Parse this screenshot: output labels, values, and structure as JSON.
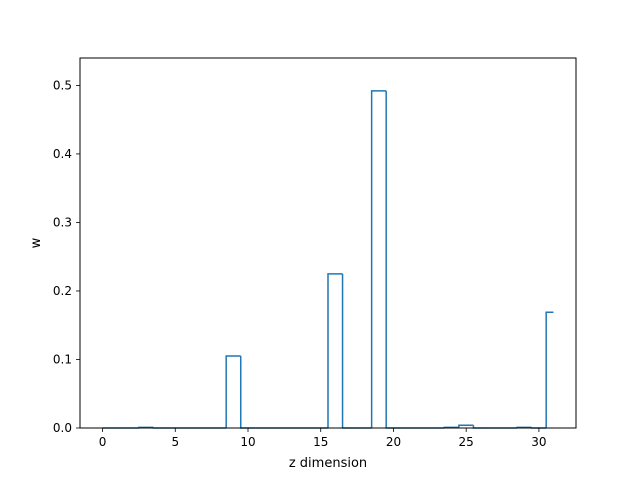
{
  "chart_data": {
    "type": "step",
    "title": "",
    "xlabel": "z dimension",
    "ylabel": "w",
    "xlim": [
      -1.55,
      32.55
    ],
    "ylim": [
      0,
      0.54
    ],
    "xticks": [
      0,
      5,
      10,
      15,
      20,
      25,
      30
    ],
    "yticks": [
      0.0,
      0.1,
      0.2,
      0.3,
      0.4,
      0.5
    ],
    "ytick_labels": [
      "0.0",
      "0.1",
      "0.2",
      "0.3",
      "0.4",
      "0.5"
    ],
    "grid": false,
    "color": "#1f77b4",
    "x": [
      0,
      1,
      2,
      3,
      4,
      5,
      6,
      7,
      8,
      9,
      10,
      11,
      12,
      13,
      14,
      15,
      16,
      17,
      18,
      19,
      20,
      21,
      22,
      23,
      24,
      25,
      26,
      27,
      28,
      29,
      30,
      31
    ],
    "values": [
      0,
      0,
      0,
      0.001,
      0,
      0,
      0,
      0,
      0,
      0.105,
      0,
      0,
      0,
      0,
      0,
      0,
      0.225,
      0,
      0,
      0.492,
      0,
      0,
      0,
      0,
      0.001,
      0.004,
      0,
      0,
      0,
      0.001,
      0,
      0.169
    ]
  }
}
